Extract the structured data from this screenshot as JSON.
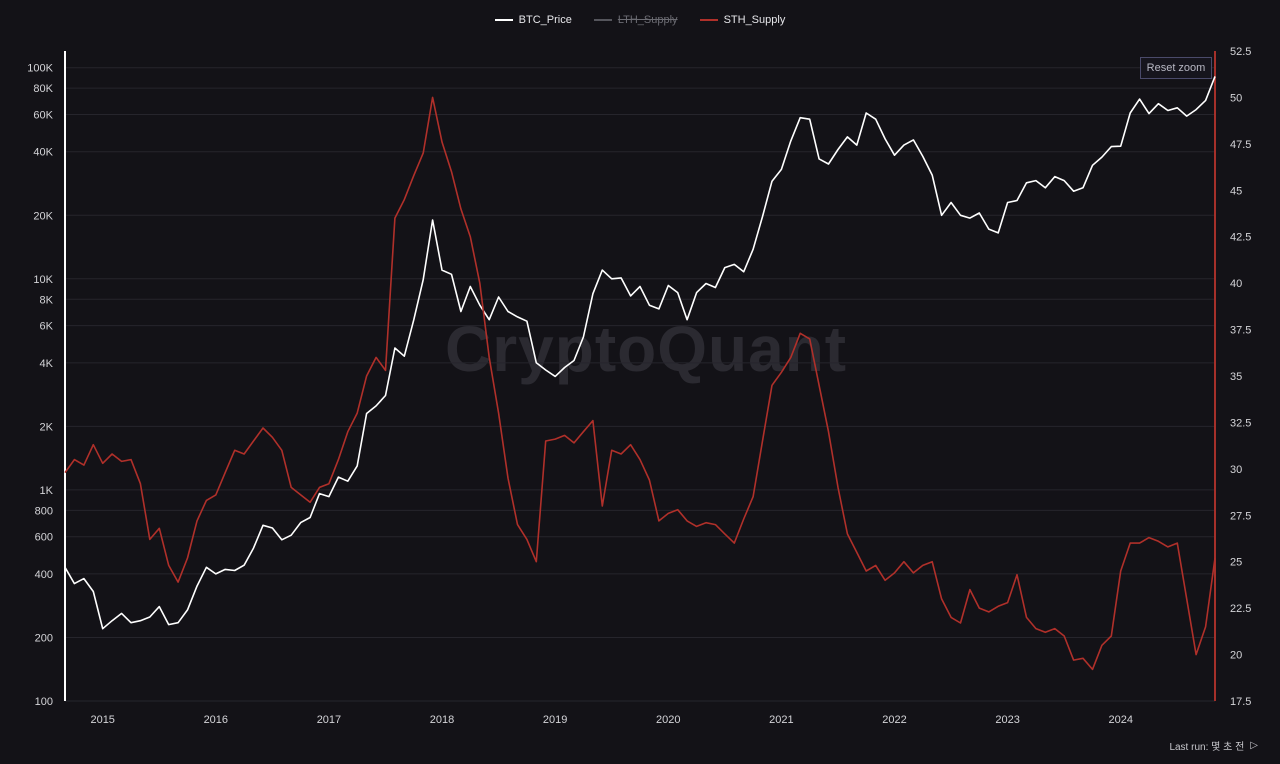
{
  "legend": [
    {
      "label": "BTC_Price",
      "color": "#ffffff",
      "active": true
    },
    {
      "label": "LTH_Supply",
      "color": "#55555c",
      "active": false
    },
    {
      "label": "STH_Supply",
      "color": "#b0302a",
      "active": true
    }
  ],
  "reset_zoom_label": "Reset zoom",
  "last_run_label": "Last run: 몇 초 전",
  "play_icon": "play-icon",
  "watermark": "CryptoQuant",
  "chart_data": {
    "type": "line",
    "x_axis": {
      "ticks": [
        "2015",
        "2016",
        "2017",
        "2018",
        "2019",
        "2020",
        "2021",
        "2022",
        "2023",
        "2024"
      ],
      "range": [
        "2014-09",
        "2024-11"
      ]
    },
    "y_left": {
      "scale": "log",
      "ticks": [
        {
          "v": 100,
          "l": "100"
        },
        {
          "v": 200,
          "l": "200"
        },
        {
          "v": 400,
          "l": "400"
        },
        {
          "v": 600,
          "l": "600"
        },
        {
          "v": 800,
          "l": "800"
        },
        {
          "v": 1000,
          "l": "1K"
        },
        {
          "v": 2000,
          "l": "2K"
        },
        {
          "v": 4000,
          "l": "4K"
        },
        {
          "v": 6000,
          "l": "6K"
        },
        {
          "v": 8000,
          "l": "8K"
        },
        {
          "v": 10000,
          "l": "10K"
        },
        {
          "v": 20000,
          "l": "20K"
        },
        {
          "v": 40000,
          "l": "40K"
        },
        {
          "v": 60000,
          "l": "60K"
        },
        {
          "v": 80000,
          "l": "80K"
        },
        {
          "v": 100000,
          "l": "100K"
        }
      ],
      "range": [
        100,
        120000
      ]
    },
    "y_right": {
      "scale": "linear",
      "ticks": [
        "17.5",
        "20",
        "22.5",
        "25",
        "27.5",
        "30",
        "32.5",
        "35",
        "37.5",
        "40",
        "42.5",
        "45",
        "47.5",
        "50",
        "52.5"
      ],
      "range": [
        17.5,
        52.5
      ]
    },
    "grid": true,
    "legend_position": "top-center",
    "series": [
      {
        "name": "BTC_Price",
        "axis": "left",
        "color": "#ffffff",
        "points": [
          [
            "2014-09",
            430
          ],
          [
            "2014-10",
            360
          ],
          [
            "2014-11",
            380
          ],
          [
            "2014-12",
            330
          ],
          [
            "2015-01",
            220
          ],
          [
            "2015-02",
            240
          ],
          [
            "2015-03",
            260
          ],
          [
            "2015-04",
            235
          ],
          [
            "2015-05",
            240
          ],
          [
            "2015-06",
            250
          ],
          [
            "2015-07",
            280
          ],
          [
            "2015-08",
            230
          ],
          [
            "2015-09",
            235
          ],
          [
            "2015-10",
            270
          ],
          [
            "2015-11",
            350
          ],
          [
            "2015-12",
            430
          ],
          [
            "2016-01",
            400
          ],
          [
            "2016-02",
            420
          ],
          [
            "2016-03",
            415
          ],
          [
            "2016-04",
            440
          ],
          [
            "2016-05",
            530
          ],
          [
            "2016-06",
            680
          ],
          [
            "2016-07",
            660
          ],
          [
            "2016-08",
            580
          ],
          [
            "2016-09",
            610
          ],
          [
            "2016-10",
            700
          ],
          [
            "2016-11",
            740
          ],
          [
            "2016-12",
            960
          ],
          [
            "2017-01",
            930
          ],
          [
            "2017-02",
            1150
          ],
          [
            "2017-03",
            1100
          ],
          [
            "2017-04",
            1300
          ],
          [
            "2017-05",
            2300
          ],
          [
            "2017-06",
            2500
          ],
          [
            "2017-07",
            2800
          ],
          [
            "2017-08",
            4700
          ],
          [
            "2017-09",
            4300
          ],
          [
            "2017-10",
            6400
          ],
          [
            "2017-11",
            9900
          ],
          [
            "2017-12",
            19000
          ],
          [
            "2018-01",
            11000
          ],
          [
            "2018-02",
            10500
          ],
          [
            "2018-03",
            7000
          ],
          [
            "2018-04",
            9200
          ],
          [
            "2018-05",
            7500
          ],
          [
            "2018-06",
            6400
          ],
          [
            "2018-07",
            8200
          ],
          [
            "2018-08",
            7000
          ],
          [
            "2018-09",
            6600
          ],
          [
            "2018-10",
            6300
          ],
          [
            "2018-11",
            4000
          ],
          [
            "2018-12",
            3700
          ],
          [
            "2019-01",
            3450
          ],
          [
            "2019-02",
            3800
          ],
          [
            "2019-03",
            4100
          ],
          [
            "2019-04",
            5300
          ],
          [
            "2019-05",
            8500
          ],
          [
            "2019-06",
            11000
          ],
          [
            "2019-07",
            10000
          ],
          [
            "2019-08",
            10100
          ],
          [
            "2019-09",
            8300
          ],
          [
            "2019-10",
            9200
          ],
          [
            "2019-11",
            7500
          ],
          [
            "2019-12",
            7200
          ],
          [
            "2020-01",
            9300
          ],
          [
            "2020-02",
            8600
          ],
          [
            "2020-03",
            6400
          ],
          [
            "2020-04",
            8600
          ],
          [
            "2020-05",
            9500
          ],
          [
            "2020-06",
            9100
          ],
          [
            "2020-07",
            11300
          ],
          [
            "2020-08",
            11700
          ],
          [
            "2020-09",
            10800
          ],
          [
            "2020-10",
            13800
          ],
          [
            "2020-11",
            19700
          ],
          [
            "2020-12",
            29000
          ],
          [
            "2021-01",
            33000
          ],
          [
            "2021-02",
            45000
          ],
          [
            "2021-03",
            58000
          ],
          [
            "2021-04",
            57000
          ],
          [
            "2021-05",
            37000
          ],
          [
            "2021-06",
            35000
          ],
          [
            "2021-07",
            41000
          ],
          [
            "2021-08",
            47000
          ],
          [
            "2021-09",
            43000
          ],
          [
            "2021-10",
            61000
          ],
          [
            "2021-11",
            57000
          ],
          [
            "2021-12",
            46000
          ],
          [
            "2022-01",
            38500
          ],
          [
            "2022-02",
            43000
          ],
          [
            "2022-03",
            45500
          ],
          [
            "2022-04",
            38000
          ],
          [
            "2022-05",
            31000
          ],
          [
            "2022-06",
            20000
          ],
          [
            "2022-07",
            23000
          ],
          [
            "2022-08",
            20000
          ],
          [
            "2022-09",
            19400
          ],
          [
            "2022-10",
            20500
          ],
          [
            "2022-11",
            17200
          ],
          [
            "2022-12",
            16500
          ],
          [
            "2023-01",
            23000
          ],
          [
            "2023-02",
            23500
          ],
          [
            "2023-03",
            28500
          ],
          [
            "2023-04",
            29200
          ],
          [
            "2023-05",
            27000
          ],
          [
            "2023-06",
            30500
          ],
          [
            "2023-07",
            29200
          ],
          [
            "2023-08",
            26000
          ],
          [
            "2023-09",
            27000
          ],
          [
            "2023-10",
            34500
          ],
          [
            "2023-11",
            37700
          ],
          [
            "2023-12",
            42300
          ],
          [
            "2024-01",
            42500
          ],
          [
            "2024-02",
            61000
          ],
          [
            "2024-03",
            71000
          ],
          [
            "2024-04",
            60600
          ],
          [
            "2024-05",
            67500
          ],
          [
            "2024-06",
            62700
          ],
          [
            "2024-07",
            64600
          ],
          [
            "2024-08",
            59000
          ],
          [
            "2024-09",
            63300
          ],
          [
            "2024-10",
            70000
          ],
          [
            "2024-11",
            91000
          ]
        ]
      },
      {
        "name": "STH_Supply",
        "axis": "right",
        "color": "#b0302a",
        "points": [
          [
            "2014-09",
            29.8
          ],
          [
            "2014-10",
            30.5
          ],
          [
            "2014-11",
            30.2
          ],
          [
            "2014-12",
            31.3
          ],
          [
            "2015-01",
            30.3
          ],
          [
            "2015-02",
            30.8
          ],
          [
            "2015-03",
            30.4
          ],
          [
            "2015-04",
            30.5
          ],
          [
            "2015-05",
            29.2
          ],
          [
            "2015-06",
            26.2
          ],
          [
            "2015-07",
            26.8
          ],
          [
            "2015-08",
            24.8
          ],
          [
            "2015-09",
            23.9
          ],
          [
            "2015-10",
            25.2
          ],
          [
            "2015-11",
            27.2
          ],
          [
            "2015-12",
            28.3
          ],
          [
            "2016-01",
            28.6
          ],
          [
            "2016-02",
            29.8
          ],
          [
            "2016-03",
            31.0
          ],
          [
            "2016-04",
            30.8
          ],
          [
            "2016-05",
            31.5
          ],
          [
            "2016-06",
            32.2
          ],
          [
            "2016-07",
            31.7
          ],
          [
            "2016-08",
            31.0
          ],
          [
            "2016-09",
            29.0
          ],
          [
            "2016-10",
            28.6
          ],
          [
            "2016-11",
            28.2
          ],
          [
            "2016-12",
            29.0
          ],
          [
            "2017-01",
            29.2
          ],
          [
            "2017-02",
            30.5
          ],
          [
            "2017-03",
            32.0
          ],
          [
            "2017-04",
            33.0
          ],
          [
            "2017-05",
            35.0
          ],
          [
            "2017-06",
            36.0
          ],
          [
            "2017-07",
            35.3
          ],
          [
            "2017-08",
            43.5
          ],
          [
            "2017-09",
            44.5
          ],
          [
            "2017-10",
            45.8
          ],
          [
            "2017-11",
            47.0
          ],
          [
            "2017-12",
            50.0
          ],
          [
            "2018-01",
            47.6
          ],
          [
            "2018-02",
            46.0
          ],
          [
            "2018-03",
            44.0
          ],
          [
            "2018-04",
            42.5
          ],
          [
            "2018-05",
            40.0
          ],
          [
            "2018-06",
            36.0
          ],
          [
            "2018-07",
            33.0
          ],
          [
            "2018-08",
            29.5
          ],
          [
            "2018-09",
            27.0
          ],
          [
            "2018-10",
            26.2
          ],
          [
            "2018-11",
            25.0
          ],
          [
            "2018-12",
            31.5
          ],
          [
            "2019-01",
            31.6
          ],
          [
            "2019-02",
            31.8
          ],
          [
            "2019-03",
            31.4
          ],
          [
            "2019-04",
            32.0
          ],
          [
            "2019-05",
            32.6
          ],
          [
            "2019-06",
            28.0
          ],
          [
            "2019-07",
            31.0
          ],
          [
            "2019-08",
            30.8
          ],
          [
            "2019-09",
            31.3
          ],
          [
            "2019-10",
            30.5
          ],
          [
            "2019-11",
            29.4
          ],
          [
            "2019-12",
            27.2
          ],
          [
            "2020-01",
            27.6
          ],
          [
            "2020-02",
            27.8
          ],
          [
            "2020-03",
            27.2
          ],
          [
            "2020-04",
            26.9
          ],
          [
            "2020-05",
            27.1
          ],
          [
            "2020-06",
            27.0
          ],
          [
            "2020-07",
            26.5
          ],
          [
            "2020-08",
            26.0
          ],
          [
            "2020-09",
            27.3
          ],
          [
            "2020-10",
            28.5
          ],
          [
            "2020-11",
            31.5
          ],
          [
            "2020-12",
            34.5
          ],
          [
            "2021-01",
            35.2
          ],
          [
            "2021-02",
            36.0
          ],
          [
            "2021-03",
            37.3
          ],
          [
            "2021-04",
            37.0
          ],
          [
            "2021-05",
            34.5
          ],
          [
            "2021-06",
            32.0
          ],
          [
            "2021-07",
            29.0
          ],
          [
            "2021-08",
            26.5
          ],
          [
            "2021-09",
            25.5
          ],
          [
            "2021-10",
            24.5
          ],
          [
            "2021-11",
            24.8
          ],
          [
            "2021-12",
            24.0
          ],
          [
            "2022-01",
            24.4
          ],
          [
            "2022-02",
            25.0
          ],
          [
            "2022-03",
            24.4
          ],
          [
            "2022-04",
            24.8
          ],
          [
            "2022-05",
            25.0
          ],
          [
            "2022-06",
            23.0
          ],
          [
            "2022-07",
            22.0
          ],
          [
            "2022-08",
            21.7
          ],
          [
            "2022-09",
            23.5
          ],
          [
            "2022-10",
            22.5
          ],
          [
            "2022-11",
            22.3
          ],
          [
            "2022-12",
            22.6
          ],
          [
            "2023-01",
            22.8
          ],
          [
            "2023-02",
            24.3
          ],
          [
            "2023-03",
            22.0
          ],
          [
            "2023-04",
            21.4
          ],
          [
            "2023-05",
            21.2
          ],
          [
            "2023-06",
            21.4
          ],
          [
            "2023-07",
            21.0
          ],
          [
            "2023-08",
            19.7
          ],
          [
            "2023-09",
            19.8
          ],
          [
            "2023-10",
            19.2
          ],
          [
            "2023-11",
            20.5
          ],
          [
            "2023-12",
            21.0
          ],
          [
            "2024-01",
            24.5
          ],
          [
            "2024-02",
            26.0
          ],
          [
            "2024-03",
            26.0
          ],
          [
            "2024-04",
            26.3
          ],
          [
            "2024-05",
            26.1
          ],
          [
            "2024-06",
            25.8
          ],
          [
            "2024-07",
            26.0
          ],
          [
            "2024-08",
            23.0
          ],
          [
            "2024-09",
            20.0
          ],
          [
            "2024-10",
            21.5
          ],
          [
            "2024-11",
            25.2
          ]
        ]
      }
    ]
  }
}
